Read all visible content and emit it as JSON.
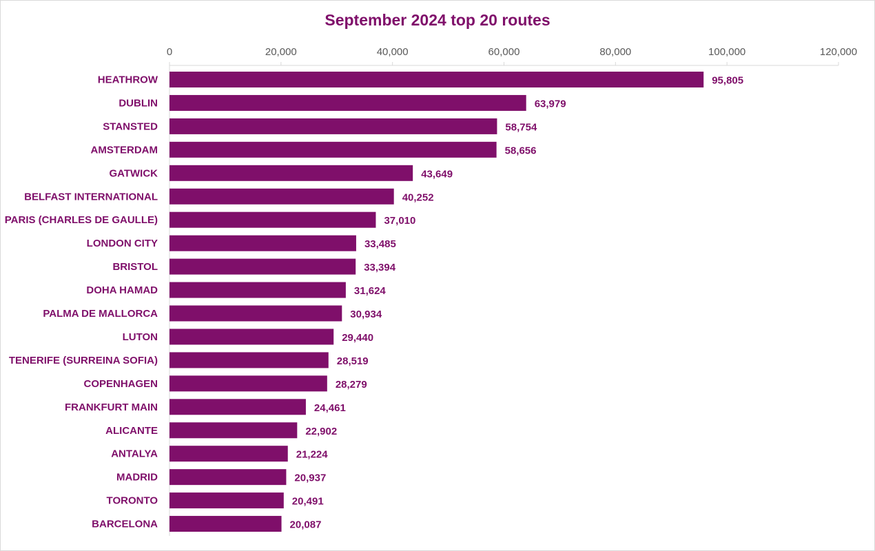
{
  "chart_data": {
    "type": "bar",
    "orientation": "horizontal",
    "title": "September 2024 top 20 routes",
    "xlabel": "",
    "ylabel": "",
    "xlim": [
      0,
      120000
    ],
    "x_ticks": [
      "0",
      "20,000",
      "40,000",
      "60,000",
      "80,000",
      "100,000",
      "120,000"
    ],
    "x_tick_values": [
      0,
      20000,
      40000,
      60000,
      80000,
      100000,
      120000
    ],
    "x_axis_position": "top",
    "grid": false,
    "legend": "none",
    "bar_color": "#7f0f6a",
    "categories": [
      "HEATHROW",
      "DUBLIN",
      "STANSTED",
      "AMSTERDAM",
      "GATWICK",
      "BELFAST INTERNATIONAL",
      "PARIS (CHARLES DE GAULLE)",
      "LONDON CITY",
      "BRISTOL",
      "DOHA HAMAD",
      "PALMA DE MALLORCA",
      "LUTON",
      "TENERIFE (SURREINA SOFIA)",
      "COPENHAGEN",
      "FRANKFURT MAIN",
      "ALICANTE",
      "ANTALYA",
      "MADRID",
      "TORONTO",
      "BARCELONA"
    ],
    "values": [
      95805,
      63979,
      58754,
      58656,
      43649,
      40252,
      37010,
      33485,
      33394,
      31624,
      30934,
      29440,
      28519,
      28279,
      24461,
      22902,
      21224,
      20937,
      20491,
      20087
    ],
    "value_labels": [
      "95,805",
      "63,979",
      "58,754",
      "58,656",
      "43,649",
      "40,252",
      "37,010",
      "33,485",
      "33,394",
      "31,624",
      "30,934",
      "29,440",
      "28,519",
      "28,279",
      "24,461",
      "22,902",
      "21,224",
      "20,937",
      "20,491",
      "20,087"
    ]
  }
}
